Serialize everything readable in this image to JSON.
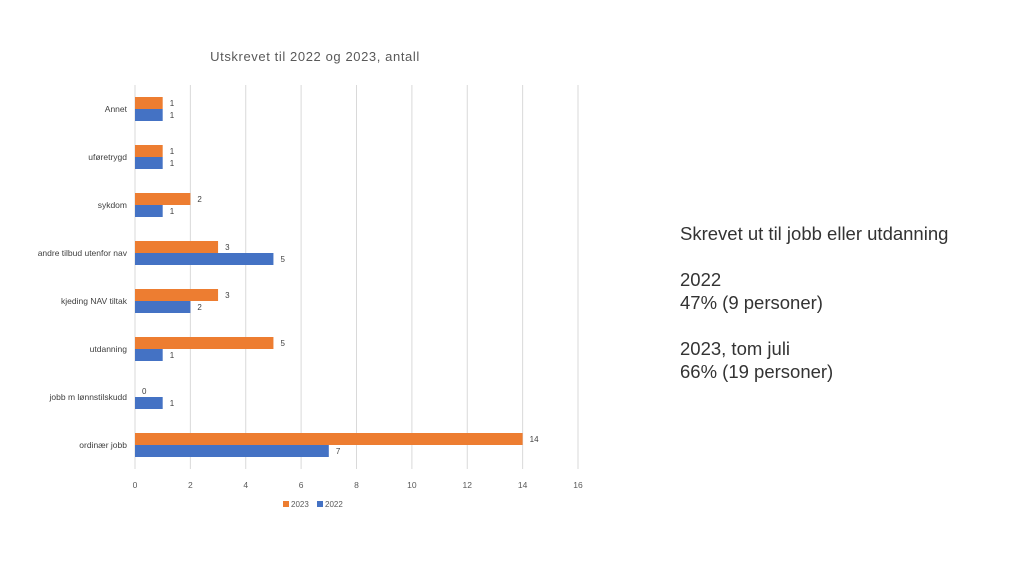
{
  "chart_data": {
    "type": "bar",
    "orientation": "horizontal",
    "title": "Utskrevet til 2022 og 2023, antall",
    "categories": [
      "Annet",
      "uføretrygd",
      "sykdom",
      "andre tilbud utenfor nav",
      "kjeding NAV tiltak",
      "utdanning",
      "jobb m lønnstilskudd",
      "ordinær jobb"
    ],
    "series": [
      {
        "name": "2023",
        "color": "#ED7D31",
        "values": [
          1,
          1,
          2,
          3,
          3,
          5,
          0,
          14
        ]
      },
      {
        "name": "2022",
        "color": "#4472C4",
        "values": [
          1,
          1,
          1,
          5,
          2,
          1,
          1,
          7
        ]
      }
    ],
    "xlim": [
      0,
      16
    ],
    "xticks": [
      0,
      2,
      4,
      6,
      8,
      10,
      12,
      14,
      16
    ],
    "grid": true,
    "legend_position": "bottom"
  },
  "summary": {
    "heading": "Skrevet ut til jobb eller utdanning",
    "year1_label": "2022",
    "year1_value": "47% (9 personer)",
    "year2_label": "2023, tom juli",
    "year2_value": "66% (19 personer)"
  }
}
